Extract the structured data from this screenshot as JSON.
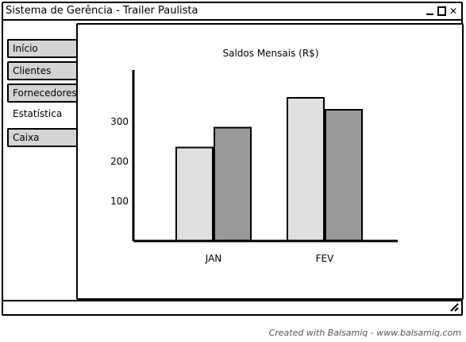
{
  "window": {
    "title": "Sistema de Gerência - Trailer Paulista",
    "controls": {
      "minimize_icon": "minimize-icon",
      "maximize_icon": "maximize-icon",
      "close_label": "✕"
    }
  },
  "tabs": [
    {
      "label": "Início",
      "active": false
    },
    {
      "label": "Clientes",
      "active": false
    },
    {
      "label": "Fornecedores",
      "active": false
    },
    {
      "label": "Estatística",
      "active": true
    },
    {
      "label": "Caixa",
      "active": false
    }
  ],
  "chart_data": {
    "type": "bar",
    "title": "Saldos Mensais (R$)",
    "xlabel": "",
    "ylabel": "",
    "categories": [
      "JAN",
      "FEV"
    ],
    "series": [
      {
        "values": [
          235,
          360
        ],
        "color": "#e0e0e0"
      },
      {
        "values": [
          285,
          330
        ],
        "color": "#999999"
      }
    ],
    "yticks": [
      100,
      200,
      300
    ],
    "ylim": [
      0,
      430
    ],
    "grid": false,
    "legend": false
  },
  "footer": {
    "credit": "Created with Balsamiq - www.balsamiq.com"
  }
}
